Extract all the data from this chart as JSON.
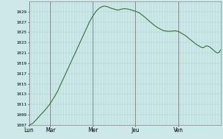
{
  "background_color": "#cce8e8",
  "plot_bg_color": "#cce8e8",
  "line_color": "#2d6a2d",
  "grid_color": "#aacccc",
  "tick_label_color": "#000000",
  "axis_color": "#888888",
  "ylim": [
    1007,
    1031
  ],
  "yticks": [
    1007,
    1009,
    1011,
    1013,
    1015,
    1017,
    1019,
    1021,
    1023,
    1025,
    1027,
    1029
  ],
  "day_labels": [
    "Lun",
    "Mar",
    "Mer",
    "Jeu",
    "Ven"
  ],
  "day_positions": [
    0,
    24,
    72,
    120,
    168
  ],
  "total_hours": 216,
  "keypoints": [
    [
      0,
      1007.0
    ],
    [
      4,
      1007.3
    ],
    [
      8,
      1008.0
    ],
    [
      12,
      1008.8
    ],
    [
      16,
      1009.5
    ],
    [
      20,
      1010.3
    ],
    [
      24,
      1011.2
    ],
    [
      28,
      1012.3
    ],
    [
      32,
      1013.5
    ],
    [
      36,
      1015.0
    ],
    [
      40,
      1016.5
    ],
    [
      44,
      1018.0
    ],
    [
      48,
      1019.5
    ],
    [
      52,
      1021.0
    ],
    [
      56,
      1022.5
    ],
    [
      60,
      1024.0
    ],
    [
      64,
      1025.5
    ],
    [
      68,
      1027.0
    ],
    [
      72,
      1028.2
    ],
    [
      76,
      1029.2
    ],
    [
      80,
      1029.8
    ],
    [
      84,
      1030.1
    ],
    [
      88,
      1030.0
    ],
    [
      92,
      1029.7
    ],
    [
      96,
      1029.5
    ],
    [
      100,
      1029.3
    ],
    [
      104,
      1029.5
    ],
    [
      108,
      1029.6
    ],
    [
      112,
      1029.5
    ],
    [
      116,
      1029.3
    ],
    [
      120,
      1029.1
    ],
    [
      124,
      1028.8
    ],
    [
      128,
      1028.3
    ],
    [
      132,
      1027.7
    ],
    [
      136,
      1027.1
    ],
    [
      140,
      1026.5
    ],
    [
      144,
      1026.0
    ],
    [
      148,
      1025.6
    ],
    [
      152,
      1025.3
    ],
    [
      156,
      1025.2
    ],
    [
      160,
      1025.2
    ],
    [
      164,
      1025.3
    ],
    [
      168,
      1025.2
    ],
    [
      172,
      1024.8
    ],
    [
      176,
      1024.4
    ],
    [
      180,
      1023.8
    ],
    [
      184,
      1023.3
    ],
    [
      188,
      1022.7
    ],
    [
      190,
      1022.5
    ],
    [
      192,
      1022.3
    ],
    [
      194,
      1022.1
    ],
    [
      196,
      1022.0
    ],
    [
      198,
      1022.2
    ],
    [
      200,
      1022.4
    ],
    [
      202,
      1022.3
    ],
    [
      204,
      1022.1
    ],
    [
      206,
      1021.8
    ],
    [
      208,
      1021.5
    ],
    [
      210,
      1021.2
    ],
    [
      212,
      1021.0
    ],
    [
      214,
      1021.1
    ],
    [
      216,
      1021.6
    ]
  ]
}
